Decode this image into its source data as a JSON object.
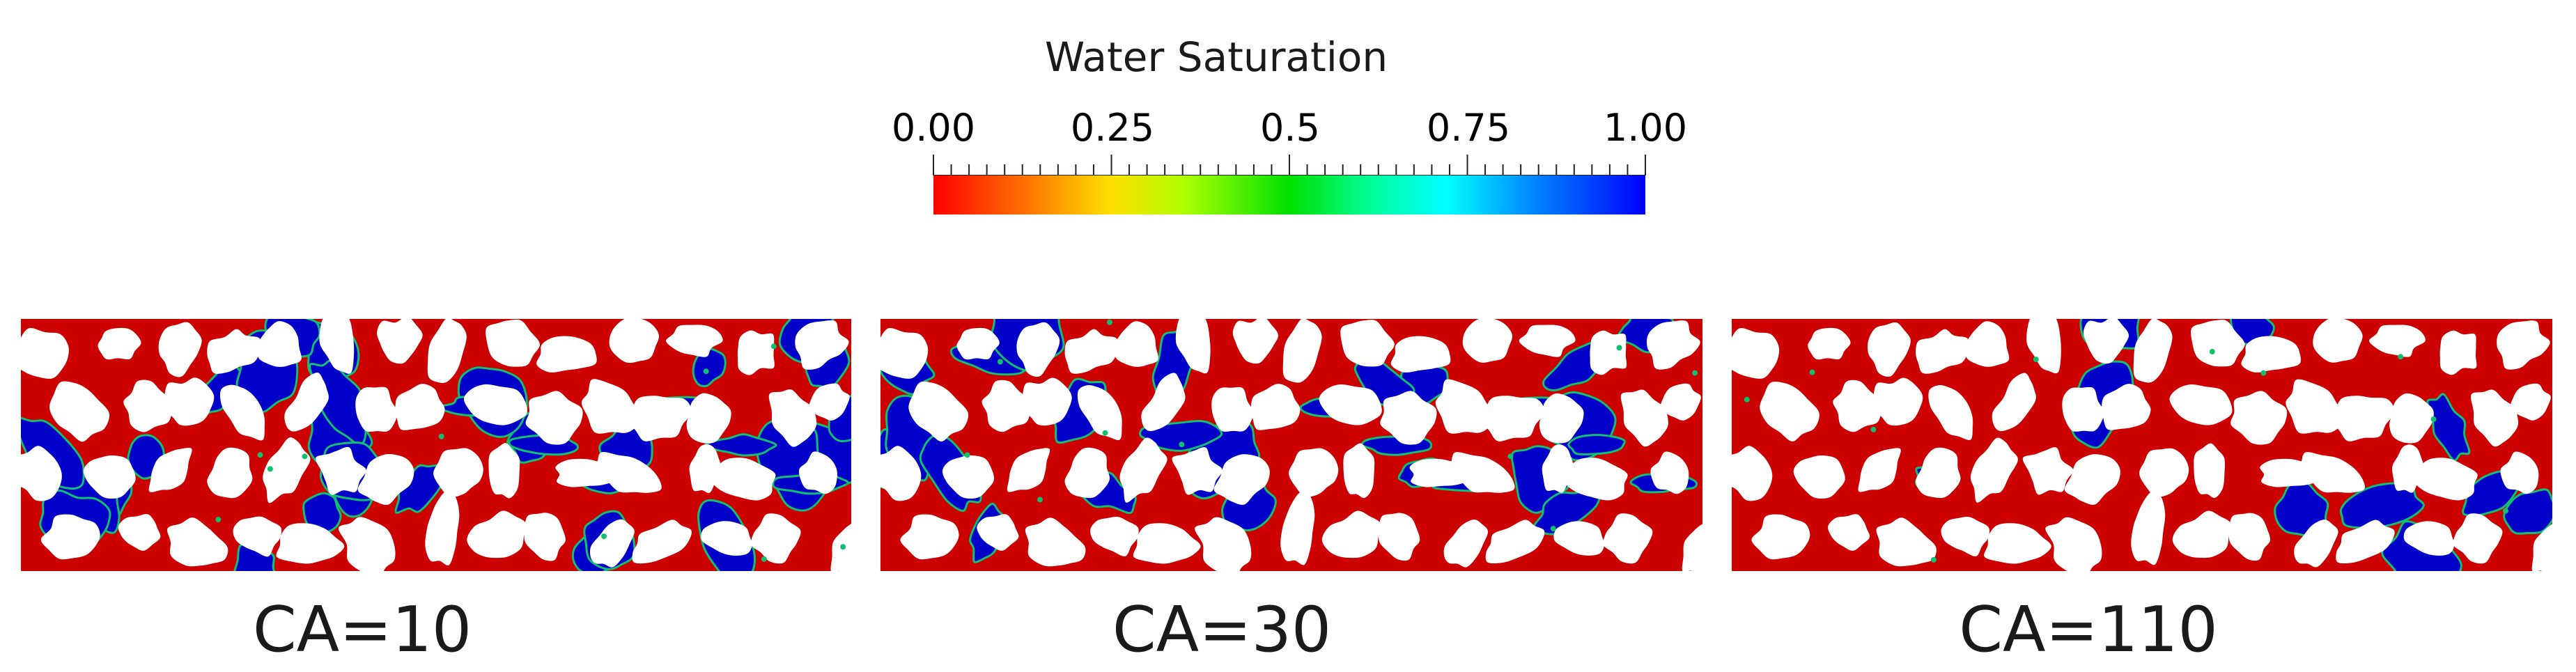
{
  "colorbar": {
    "title": "Water Saturation",
    "tick_labels": [
      "0.00",
      "0.25",
      "0.5",
      "0.75",
      "1.00"
    ],
    "range": [
      0,
      1
    ],
    "colors": {
      "low": "#ff0000",
      "stops": [
        "#ff0000",
        "#ff7f00",
        "#ffff00",
        "#7fff00",
        "#00e000",
        "#00ffa0",
        "#00ffff",
        "#0080ff",
        "#0000ff"
      ],
      "high": "#0000ff"
    }
  },
  "panels": [
    {
      "label": "CA=10"
    },
    {
      "label": "CA=30"
    },
    {
      "label": "CA=110"
    }
  ],
  "colors": {
    "solid_grain": "#ffffff",
    "oil_phase": "#cc0000",
    "water_phase": "#0000c8",
    "interface": "#10c070"
  }
}
